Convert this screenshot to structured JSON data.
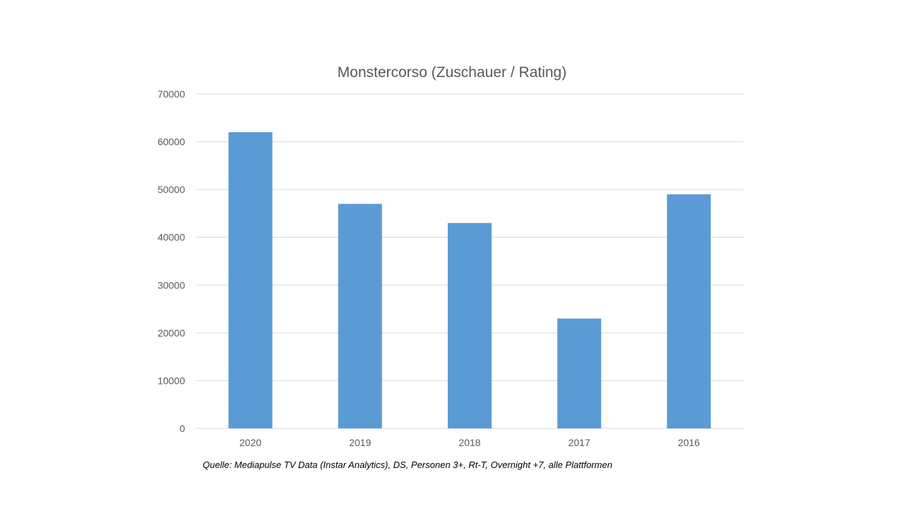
{
  "chart_data": {
    "type": "bar",
    "title": "Monstercorso (Zuschauer / Rating)",
    "categories": [
      "2020",
      "2019",
      "2018",
      "2017",
      "2016"
    ],
    "values": [
      62000,
      47000,
      43000,
      23000,
      49000
    ],
    "ylim": [
      0,
      70000
    ],
    "yticks": [
      0,
      10000,
      20000,
      30000,
      40000,
      50000,
      60000,
      70000
    ],
    "xlabel": "",
    "ylabel": "",
    "grid": true,
    "bar_color": "#5b9bd5",
    "grid_color": "#d9d9d9"
  },
  "source_note": "Quelle: Mediapulse TV Data (Instar Analytics), DS, Personen 3+, Rt-T, Overnight +7, alle Plattformen"
}
